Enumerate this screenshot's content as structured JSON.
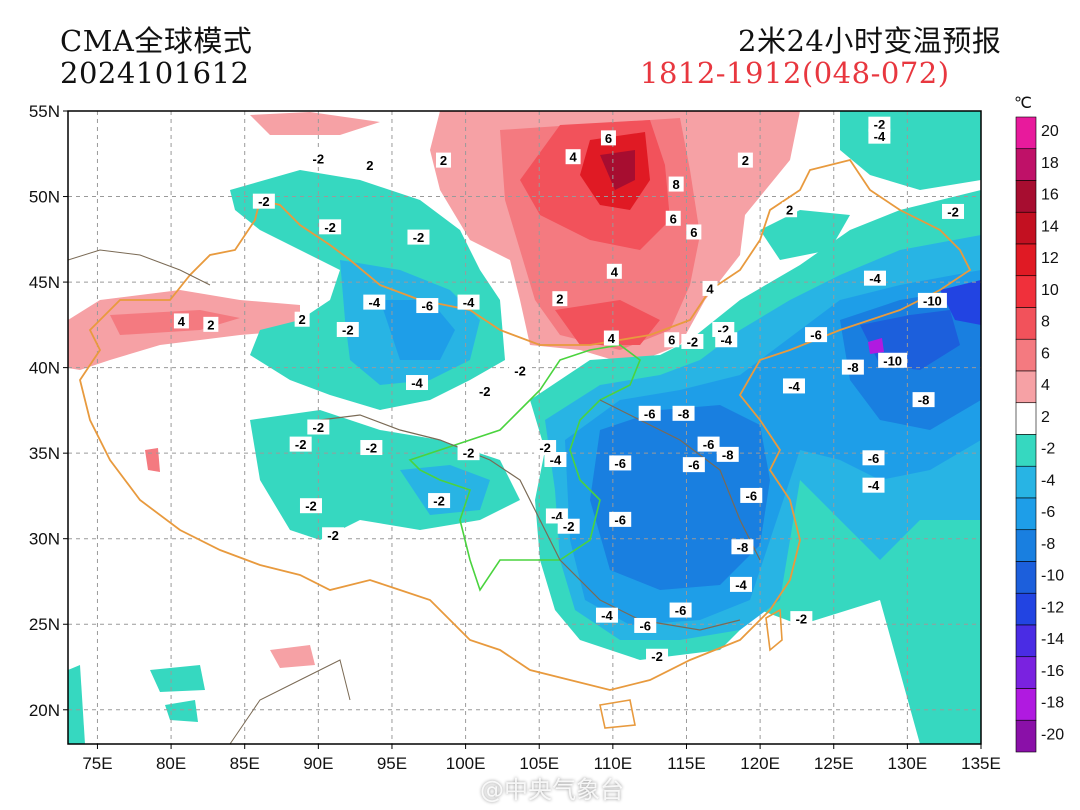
{
  "header": {
    "model": "CMA全球模式",
    "run_time": "2024101612",
    "product": "2米24小时变温预报",
    "valid_range": "1812-1912(048-072)"
  },
  "map": {
    "lon_range": [
      73,
      135
    ],
    "lat_range": [
      18,
      55
    ],
    "lon_ticks": [
      "75E",
      "80E",
      "85E",
      "90E",
      "95E",
      "100E",
      "105E",
      "110E",
      "115E",
      "120E",
      "125E",
      "130E",
      "135E"
    ],
    "lat_ticks": [
      "55N",
      "50N",
      "45N",
      "40N",
      "35N",
      "30N",
      "25N",
      "20N"
    ],
    "grid": true,
    "isoline_labels": [
      {
        "value": "-2",
        "lon": 90,
        "lat": 52.2
      },
      {
        "value": "-2",
        "lon": 86.3,
        "lat": 49.7
      },
      {
        "value": "-2",
        "lon": 96.8,
        "lat": 47.6
      },
      {
        "value": "-2",
        "lon": 90.8,
        "lat": 48.2
      },
      {
        "value": "-4",
        "lon": 93.8,
        "lat": 43.8
      },
      {
        "value": "-6",
        "lon": 97.4,
        "lat": 43.6
      },
      {
        "value": "-4",
        "lon": 100.2,
        "lat": 43.8
      },
      {
        "value": "-2",
        "lon": 92,
        "lat": 42.2
      },
      {
        "value": "-4",
        "lon": 96.7,
        "lat": 39.1
      },
      {
        "value": "-2",
        "lon": 103.7,
        "lat": 39.8
      },
      {
        "value": "-2",
        "lon": 101.3,
        "lat": 38.6
      },
      {
        "value": "-2",
        "lon": 90,
        "lat": 36.5
      },
      {
        "value": "-2",
        "lon": 88.8,
        "lat": 35.5
      },
      {
        "value": "-2",
        "lon": 93.6,
        "lat": 35.3
      },
      {
        "value": "-2",
        "lon": 100.2,
        "lat": 35
      },
      {
        "value": "-2",
        "lon": 89.5,
        "lat": 31.9
      },
      {
        "value": "-2",
        "lon": 98.2,
        "lat": 32.2
      },
      {
        "value": "-2",
        "lon": 91,
        "lat": 30.2
      },
      {
        "value": "-2",
        "lon": 105.4,
        "lat": 35.3
      },
      {
        "value": "-4",
        "lon": 106.1,
        "lat": 34.6
      },
      {
        "value": "-6",
        "lon": 110.5,
        "lat": 34.4
      },
      {
        "value": "-6",
        "lon": 112.5,
        "lat": 37.3
      },
      {
        "value": "-8",
        "lon": 114.8,
        "lat": 37.3
      },
      {
        "value": "-6",
        "lon": 116.5,
        "lat": 35.5
      },
      {
        "value": "-6",
        "lon": 115.5,
        "lat": 34.3
      },
      {
        "value": "-8",
        "lon": 117.8,
        "lat": 34.9
      },
      {
        "value": "-6",
        "lon": 119.4,
        "lat": 32.5
      },
      {
        "value": "-4",
        "lon": 106.2,
        "lat": 31.3
      },
      {
        "value": "-6",
        "lon": 110.5,
        "lat": 31.1
      },
      {
        "value": "-2",
        "lon": 107,
        "lat": 30.7
      },
      {
        "value": "-8",
        "lon": 118.8,
        "lat": 29.5
      },
      {
        "value": "-4",
        "lon": 118.7,
        "lat": 27.3
      },
      {
        "value": "-4",
        "lon": 109.6,
        "lat": 25.5
      },
      {
        "value": "-6",
        "lon": 114.6,
        "lat": 25.8
      },
      {
        "value": "-6",
        "lon": 112.2,
        "lat": 24.9
      },
      {
        "value": "-2",
        "lon": 113,
        "lat": 23.1
      },
      {
        "value": "-2",
        "lon": 122.8,
        "lat": 25.3
      },
      {
        "value": "-2",
        "lon": 115.4,
        "lat": 41.5
      },
      {
        "value": "-2",
        "lon": 117.5,
        "lat": 42.2
      },
      {
        "value": "-4",
        "lon": 117.7,
        "lat": 41.6
      },
      {
        "value": "-6",
        "lon": 123.8,
        "lat": 41.9
      },
      {
        "value": "-4",
        "lon": 122.3,
        "lat": 38.9
      },
      {
        "value": "-8",
        "lon": 126.3,
        "lat": 40
      },
      {
        "value": "-10",
        "lon": 129,
        "lat": 40.4
      },
      {
        "value": "-8",
        "lon": 131.1,
        "lat": 38.1
      },
      {
        "value": "-6",
        "lon": 127.7,
        "lat": 34.7
      },
      {
        "value": "-4",
        "lon": 127.7,
        "lat": 33.1
      },
      {
        "value": "-4",
        "lon": 127.8,
        "lat": 45.2
      },
      {
        "value": "-10",
        "lon": 131.7,
        "lat": 43.9
      },
      {
        "value": "-2",
        "lon": 133.1,
        "lat": 49.1
      },
      {
        "value": "-2",
        "lon": 128.1,
        "lat": 54.2
      },
      {
        "value": "-4",
        "lon": 128.1,
        "lat": 53.5
      },
      {
        "value": "2",
        "lon": 93.5,
        "lat": 51.8
      },
      {
        "value": "2",
        "lon": 98.5,
        "lat": 52.1
      },
      {
        "value": "4",
        "lon": 107.3,
        "lat": 52.3
      },
      {
        "value": "6",
        "lon": 109.7,
        "lat": 53.4
      },
      {
        "value": "8",
        "lon": 114.3,
        "lat": 50.7
      },
      {
        "value": "6",
        "lon": 114.1,
        "lat": 48.7
      },
      {
        "value": "6",
        "lon": 115.5,
        "lat": 47.9
      },
      {
        "value": "2",
        "lon": 119,
        "lat": 52.1
      },
      {
        "value": "2",
        "lon": 122,
        "lat": 49.2
      },
      {
        "value": "4",
        "lon": 110.1,
        "lat": 45.6
      },
      {
        "value": "4",
        "lon": 116.6,
        "lat": 44.6
      },
      {
        "value": "2",
        "lon": 106.4,
        "lat": 44
      },
      {
        "value": "4",
        "lon": 109.9,
        "lat": 41.7
      },
      {
        "value": "6",
        "lon": 114,
        "lat": 41.6
      },
      {
        "value": "4",
        "lon": 80.7,
        "lat": 42.7
      },
      {
        "value": "2",
        "lon": 82.7,
        "lat": 42.5
      },
      {
        "value": "2",
        "lon": 88.9,
        "lat": 42.8
      }
    ]
  },
  "colorbar": {
    "unit": "℃",
    "labels": [
      "20",
      "18",
      "16",
      "14",
      "12",
      "10",
      "8",
      "6",
      "4",
      "2",
      "-2",
      "-4",
      "-6",
      "-8",
      "-10",
      "-12",
      "-14",
      "-16",
      "-18",
      "-20"
    ],
    "colors": [
      "#e81a9c",
      "#bf1168",
      "#a70d30",
      "#c31021",
      "#e01a24",
      "#f0303b",
      "#f2525b",
      "#f47a80",
      "#f6a1a5",
      "#ffffff",
      "#36d8c0",
      "#28b4e4",
      "#1e9ee8",
      "#197fe0",
      "#1c5fdc",
      "#2244e2",
      "#4a2ce4",
      "#7a22e0",
      "#b01ae0",
      "#8a10a8"
    ]
  },
  "watermark": "@中央气象台"
}
